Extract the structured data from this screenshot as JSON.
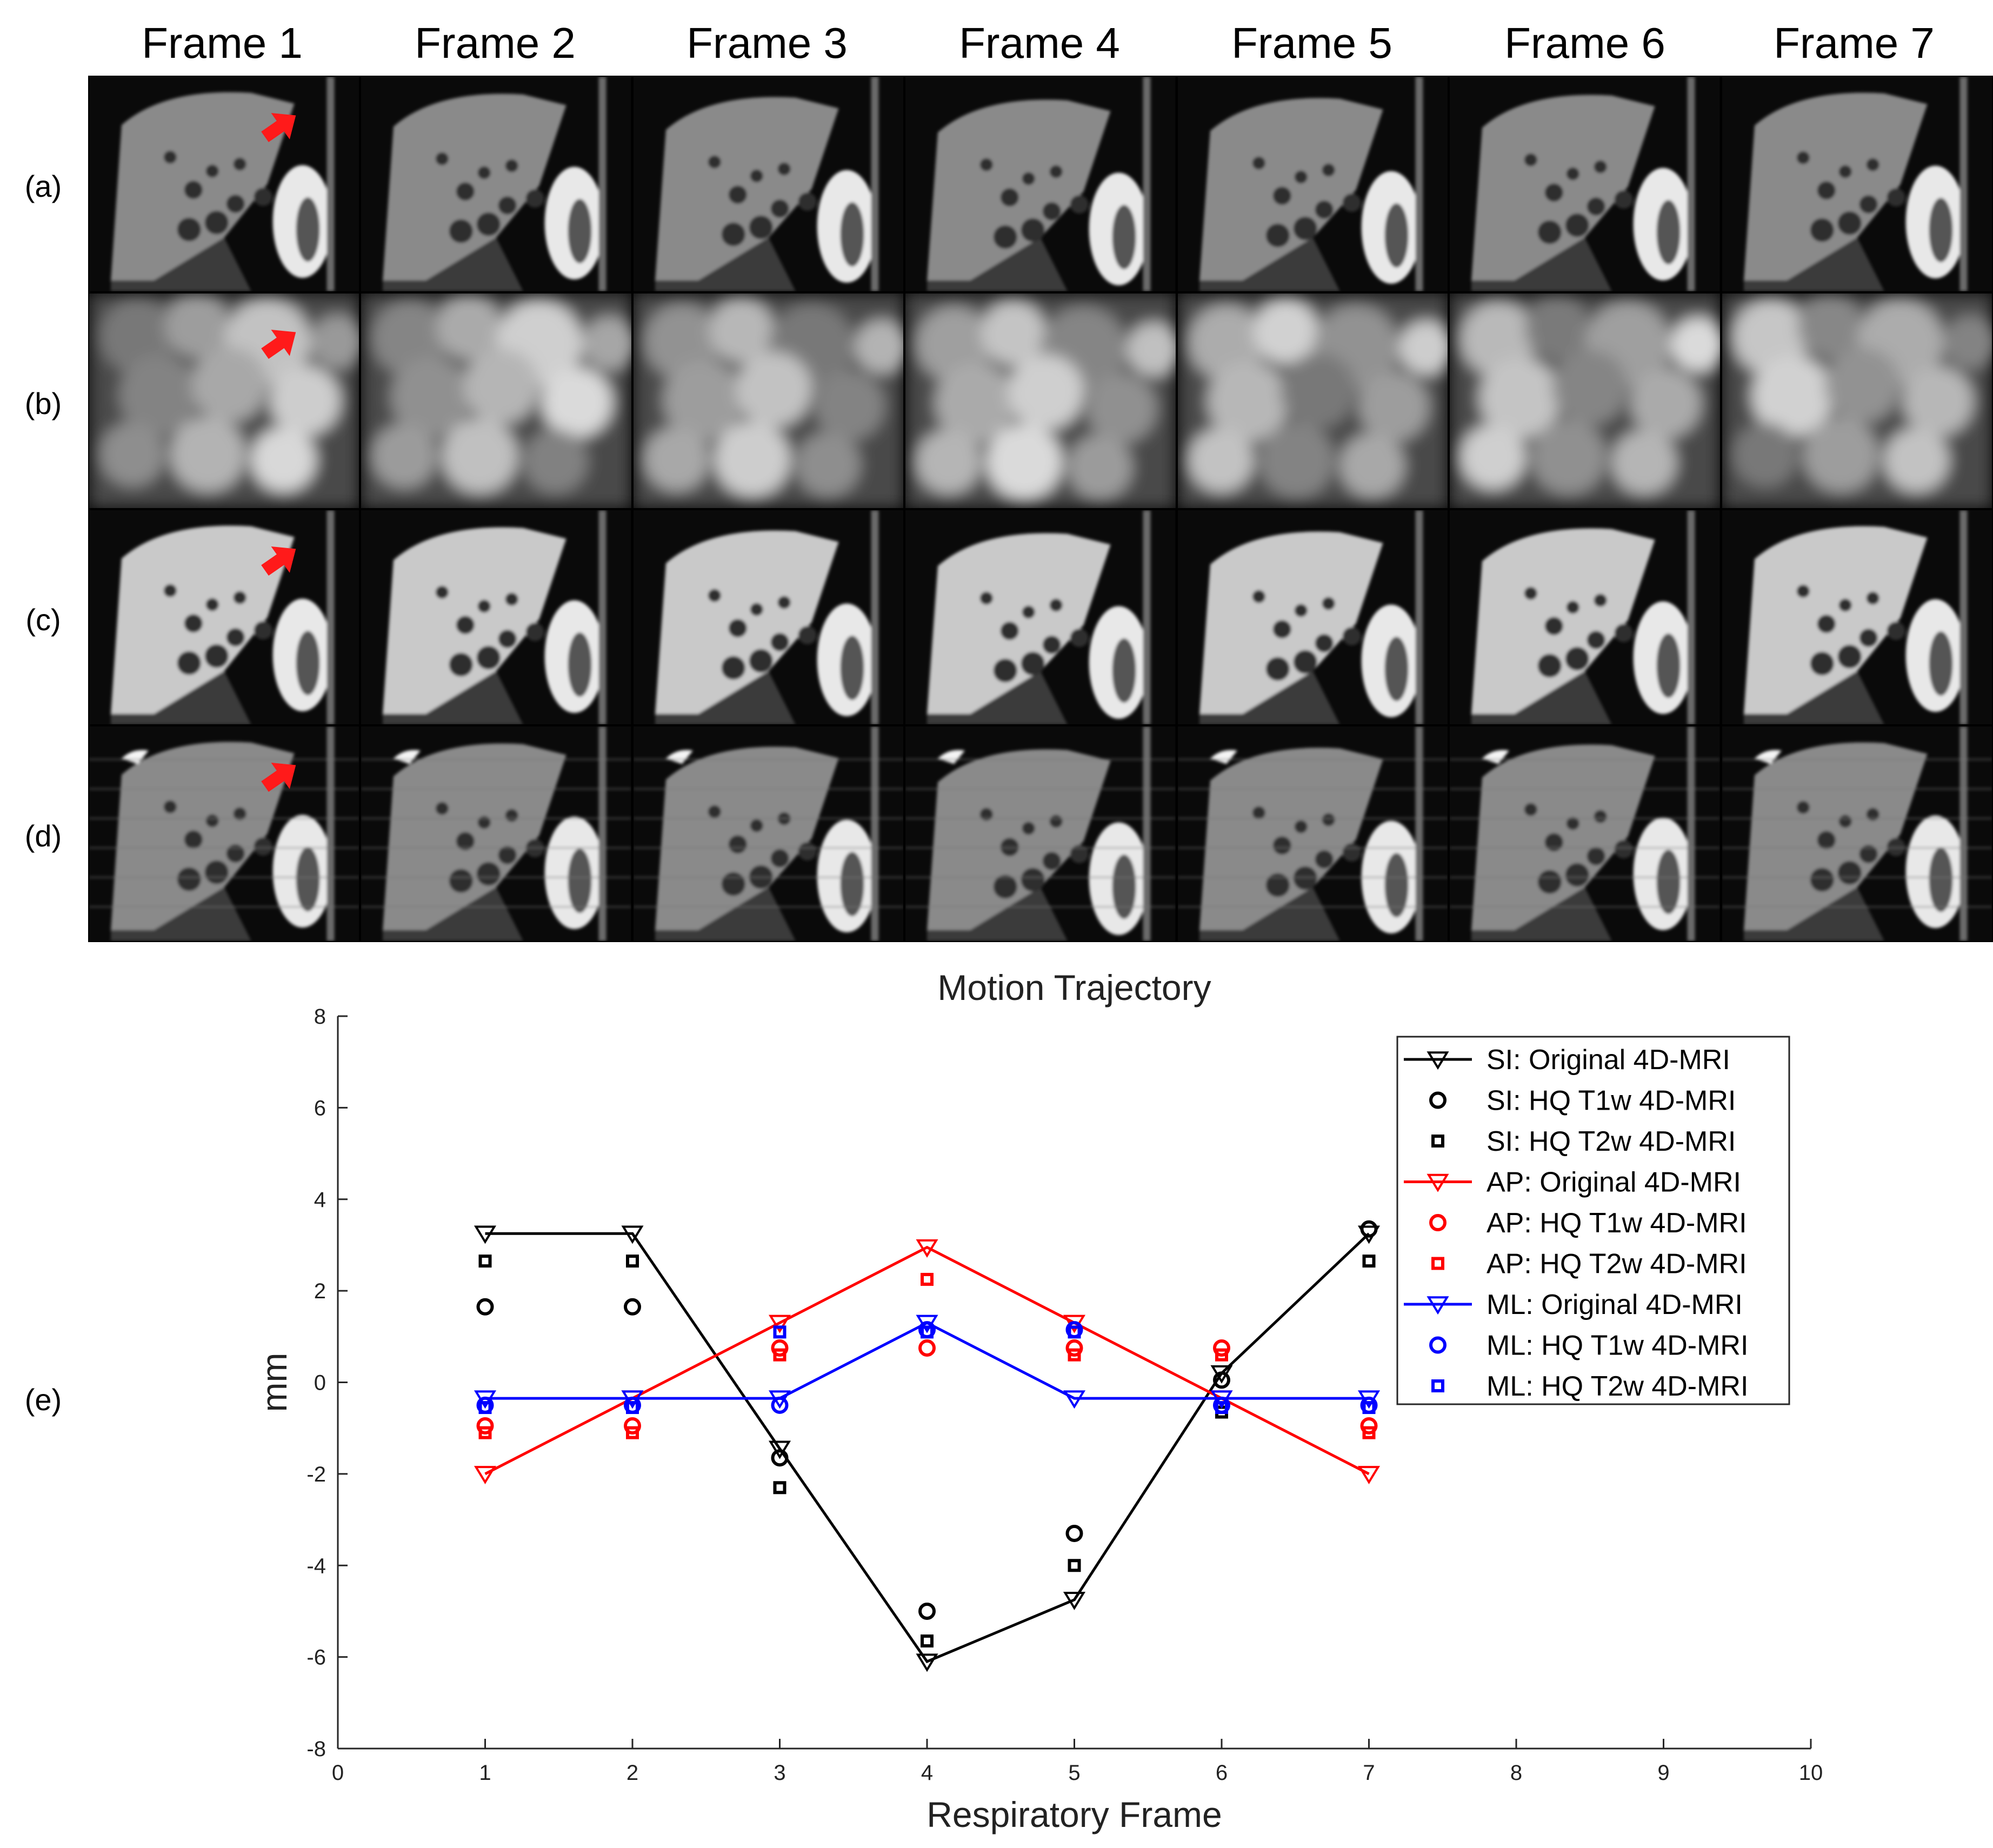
{
  "frames": [
    "Frame 1",
    "Frame 2",
    "Frame 3",
    "Frame 4",
    "Frame 5",
    "Frame 6",
    "Frame 7"
  ],
  "rows": [
    {
      "label": "(a)",
      "style": "liver-t1"
    },
    {
      "label": "(b)",
      "style": "blurred"
    },
    {
      "label": "(c)",
      "style": "liver-bright"
    },
    {
      "label": "(d)",
      "style": "liver-artifact"
    }
  ],
  "plot_row_label": "(e)",
  "arrow_color": "#ff1a1a",
  "chart_data": {
    "type": "line",
    "title": "Motion Trajectory",
    "xlabel": "Respiratory Frame",
    "ylabel": "mm",
    "xlim": [
      0,
      10
    ],
    "ylim": [
      -8,
      8
    ],
    "xticks": [
      0,
      1,
      2,
      3,
      4,
      5,
      6,
      7,
      8,
      9,
      10
    ],
    "yticks": [
      8,
      6,
      4,
      2,
      0,
      -2,
      -4,
      -6,
      -8
    ],
    "legend_position": "top-right",
    "series": [
      {
        "name": "SI: Original 4D-MRI",
        "color": "#000000",
        "marker": "triangle-down",
        "line": true,
        "x": [
          1,
          2,
          3,
          4,
          5,
          6,
          7
        ],
        "y": [
          3.25,
          3.25,
          -1.45,
          -6.1,
          -4.75,
          0.2,
          3.25
        ]
      },
      {
        "name": "SI: HQ T1w 4D-MRI",
        "color": "#000000",
        "marker": "circle",
        "line": false,
        "x": [
          1,
          2,
          3,
          4,
          5,
          6,
          7
        ],
        "y": [
          1.65,
          1.65,
          -1.65,
          -5.0,
          -3.3,
          0.05,
          3.35
        ]
      },
      {
        "name": "SI: HQ T2w 4D-MRI",
        "color": "#000000",
        "marker": "square",
        "line": false,
        "x": [
          1,
          2,
          3,
          4,
          5,
          6,
          7
        ],
        "y": [
          2.65,
          2.65,
          -2.3,
          -5.65,
          -4.0,
          -0.65,
          2.65
        ]
      },
      {
        "name": "AP: Original 4D-MRI",
        "color": "#ff0000",
        "marker": "triangle-down",
        "line": true,
        "x": [
          1,
          2,
          3,
          4,
          5,
          6,
          7
        ],
        "y": [
          -2.0,
          -0.35,
          1.3,
          2.95,
          1.3,
          -0.35,
          -2.0
        ]
      },
      {
        "name": "AP: HQ T1w 4D-MRI",
        "color": "#ff0000",
        "marker": "circle",
        "line": false,
        "x": [
          1,
          2,
          3,
          4,
          5,
          6,
          7
        ],
        "y": [
          -0.95,
          -0.95,
          0.75,
          0.75,
          0.75,
          0.75,
          -0.95
        ]
      },
      {
        "name": "AP: HQ T2w 4D-MRI",
        "color": "#ff0000",
        "marker": "square",
        "line": false,
        "x": [
          1,
          2,
          3,
          4,
          5,
          6,
          7
        ],
        "y": [
          -1.1,
          -1.1,
          0.6,
          2.25,
          0.6,
          0.6,
          -1.1
        ]
      },
      {
        "name": "ML: Original 4D-MRI",
        "color": "#0000ff",
        "marker": "triangle-down",
        "line": true,
        "x": [
          1,
          2,
          3,
          4,
          5,
          6,
          7
        ],
        "y": [
          -0.35,
          -0.35,
          -0.35,
          1.3,
          -0.35,
          -0.35,
          -0.35
        ]
      },
      {
        "name": "ML: HQ T1w 4D-MRI",
        "color": "#0000ff",
        "marker": "circle",
        "line": false,
        "x": [
          1,
          2,
          3,
          4,
          5,
          6,
          7
        ],
        "y": [
          -0.5,
          -0.5,
          -0.5,
          1.15,
          1.15,
          -0.5,
          -0.5
        ]
      },
      {
        "name": "ML: HQ T2w 4D-MRI",
        "color": "#0000ff",
        "marker": "square",
        "line": false,
        "x": [
          1,
          2,
          3,
          4,
          5,
          6,
          7
        ],
        "y": [
          -0.55,
          -0.55,
          1.1,
          1.1,
          1.1,
          -0.55,
          -0.55
        ]
      }
    ]
  }
}
